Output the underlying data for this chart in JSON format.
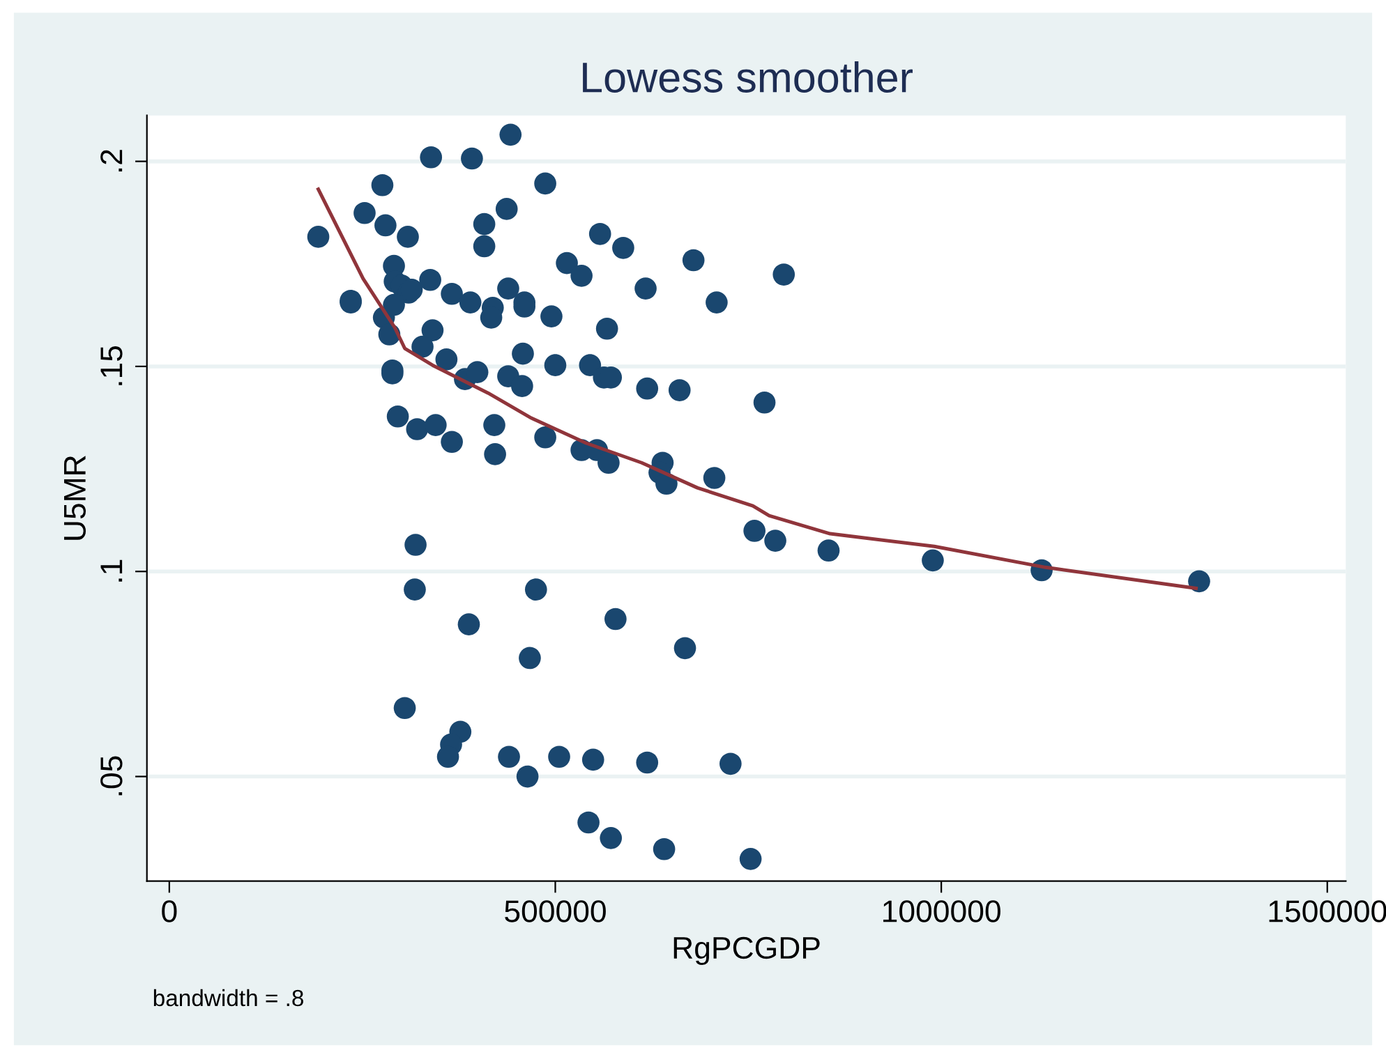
{
  "chart_data": {
    "type": "scatter",
    "title": "Lowess smoother",
    "xlabel": "RgPCGDP",
    "ylabel": "U5MR",
    "annotations": [
      "bandwidth = .8"
    ],
    "xlim": [
      -29000,
      1524000
    ],
    "ylim": [
      0.0245,
      0.2112
    ],
    "xticks": [
      0,
      500000,
      1000000,
      1500000
    ],
    "yticks": [
      {
        "value": 0.05,
        "label": ".05"
      },
      {
        "value": 0.1,
        "label": ".1"
      },
      {
        "value": 0.15,
        "label": ".15"
      },
      {
        "value": 0.2,
        "label": ".2"
      }
    ],
    "grid": "y",
    "legend": false,
    "series": [
      {
        "marker": "circle",
        "color": "#1a476f",
        "x": [
          193000,
          235000,
          253000,
          276000,
          280000,
          339000,
          392000,
          442000,
          487000,
          309000,
          408000,
          437000,
          408000,
          291000,
          292000,
          301000,
          310000,
          314000,
          338000,
          366000,
          390000,
          419000,
          417000,
          439000,
          460000,
          460000,
          495000,
          515000,
          534000,
          558000,
          588000,
          617000,
          567000,
          235000,
          278000,
          291000,
          285000,
          341000,
          328000,
          359000,
          383000,
          399000,
          439000,
          457000,
          458000,
          500000,
          545000,
          563000,
          572000,
          619000,
          289000,
          289000,
          296000,
          321000,
          345000,
          366000,
          421000,
          422000,
          487000,
          534000,
          554000,
          569000,
          639000,
          635000,
          644000,
          679000,
          796000,
          709000,
          661000,
          771000,
          706000,
          319000,
          318000,
          475000,
          388000,
          578000,
          467000,
          668000,
          305000,
          377000,
          365000,
          361000,
          440000,
          464000,
          505000,
          549000,
          619000,
          727000,
          543000,
          572000,
          641000,
          753000,
          758000,
          785000,
          854000,
          989000,
          1130000,
          1334000
        ],
        "values": [
          0.1816,
          0.166,
          0.1874,
          0.1942,
          0.1844,
          0.201,
          0.2007,
          0.2065,
          0.1946,
          0.1816,
          0.1847,
          0.1884,
          0.1793,
          0.1745,
          0.1707,
          0.1697,
          0.168,
          0.1687,
          0.1711,
          0.1677,
          0.1656,
          0.1643,
          0.1619,
          0.169,
          0.1656,
          0.1646,
          0.1622,
          0.1752,
          0.1721,
          0.1823,
          0.1789,
          0.169,
          0.1592,
          0.1656,
          0.1619,
          0.165,
          0.1578,
          0.1588,
          0.1548,
          0.1517,
          0.1469,
          0.1486,
          0.1476,
          0.1452,
          0.1531,
          0.1503,
          0.1503,
          0.1473,
          0.1473,
          0.1446,
          0.1483,
          0.149,
          0.1378,
          0.1347,
          0.1357,
          0.1316,
          0.1357,
          0.1286,
          0.1327,
          0.1296,
          0.1296,
          0.1265,
          0.1265,
          0.1241,
          0.1214,
          0.1759,
          0.1724,
          0.1656,
          0.1442,
          0.1412,
          0.1228,
          0.1065,
          0.0956,
          0.0956,
          0.0871,
          0.0884,
          0.0789,
          0.0813,
          0.0667,
          0.0609,
          0.0578,
          0.0548,
          0.0548,
          0.05,
          0.0548,
          0.0541,
          0.0534,
          0.0531,
          0.0388,
          0.035,
          0.0323,
          0.0299,
          0.1099,
          0.1075,
          0.1051,
          0.1027,
          0.1003,
          0.0976
        ]
      },
      {
        "type": "line",
        "line_style": "solid",
        "marker": "none",
        "color": "#90353b",
        "x": [
          193000,
          251000,
          292000,
          305000,
          341000,
          413000,
          469000,
          540000,
          612000,
          684000,
          756000,
          777000,
          856000,
          991000,
          1135000,
          1330000
        ],
        "values": [
          0.1932,
          0.1714,
          0.1595,
          0.1544,
          0.1503,
          0.1435,
          0.1374,
          0.1313,
          0.1265,
          0.1204,
          0.116,
          0.1136,
          0.1092,
          0.1061,
          0.101,
          0.0959
        ]
      }
    ]
  }
}
